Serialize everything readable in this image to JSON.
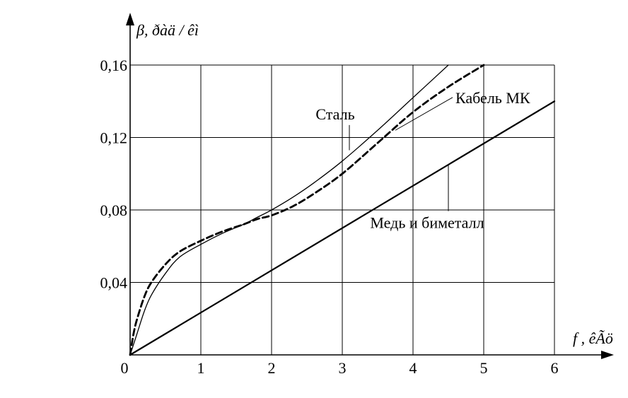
{
  "chart_data": {
    "type": "line",
    "title": "",
    "xlabel": "f , êÃö",
    "ylabel": "β, ðàä / êì",
    "xlim": [
      0,
      6
    ],
    "ylim": [
      0,
      0.16
    ],
    "grid": true,
    "x_ticks": [
      0,
      1,
      2,
      3,
      4,
      5,
      6
    ],
    "x_tick_labels": [
      "0",
      "1",
      "2",
      "3",
      "4",
      "5",
      "6"
    ],
    "y_ticks": [
      0.04,
      0.08,
      0.12,
      0.16
    ],
    "y_tick_labels": [
      "0,04",
      "0,08",
      "0,12",
      "0,16"
    ],
    "series": [
      {
        "name": "Сталь",
        "style": "solid-thin",
        "x": [
          0,
          0.1,
          0.2,
          0.3,
          0.5,
          0.7,
          1.0,
          1.3,
          1.6,
          1.8,
          2.0,
          2.3,
          2.6,
          3.0,
          3.5,
          4.0,
          4.5
        ],
        "y": [
          0,
          0.012,
          0.024,
          0.033,
          0.045,
          0.054,
          0.061,
          0.067,
          0.072,
          0.076,
          0.08,
          0.087,
          0.095,
          0.107,
          0.124,
          0.142,
          0.16
        ]
      },
      {
        "name": "Кабель МК",
        "style": "dashed-thick",
        "x": [
          0,
          0.05,
          0.1,
          0.2,
          0.3,
          0.5,
          0.7,
          1.0,
          1.3,
          1.6,
          1.8,
          2.0,
          2.3,
          2.6,
          3.0,
          3.5,
          4.0,
          4.5,
          5.0
        ],
        "y": [
          0,
          0.012,
          0.02,
          0.032,
          0.04,
          0.05,
          0.057,
          0.063,
          0.068,
          0.072,
          0.075,
          0.077,
          0.082,
          0.089,
          0.1,
          0.117,
          0.134,
          0.148,
          0.16
        ]
      },
      {
        "name": "Медь и биметалл",
        "style": "solid-thick",
        "x": [
          0,
          6
        ],
        "y": [
          0,
          0.14
        ]
      }
    ],
    "annotations": [
      {
        "series": 0,
        "text": "Сталь",
        "label_x": 2.9,
        "label_y": 0.13,
        "point_x": 3.1,
        "point_y": 0.113,
        "anchor": "middle"
      },
      {
        "series": 1,
        "text": "Кабель МК",
        "label_x": 4.6,
        "label_y": 0.139,
        "point_x": 3.75,
        "point_y": 0.124,
        "anchor": "start"
      },
      {
        "series": 2,
        "text": "Медь и биметалл",
        "label_x": 4.2,
        "label_y": 0.07,
        "point_x": 4.5,
        "point_y": 0.105,
        "anchor": "middle"
      }
    ]
  }
}
